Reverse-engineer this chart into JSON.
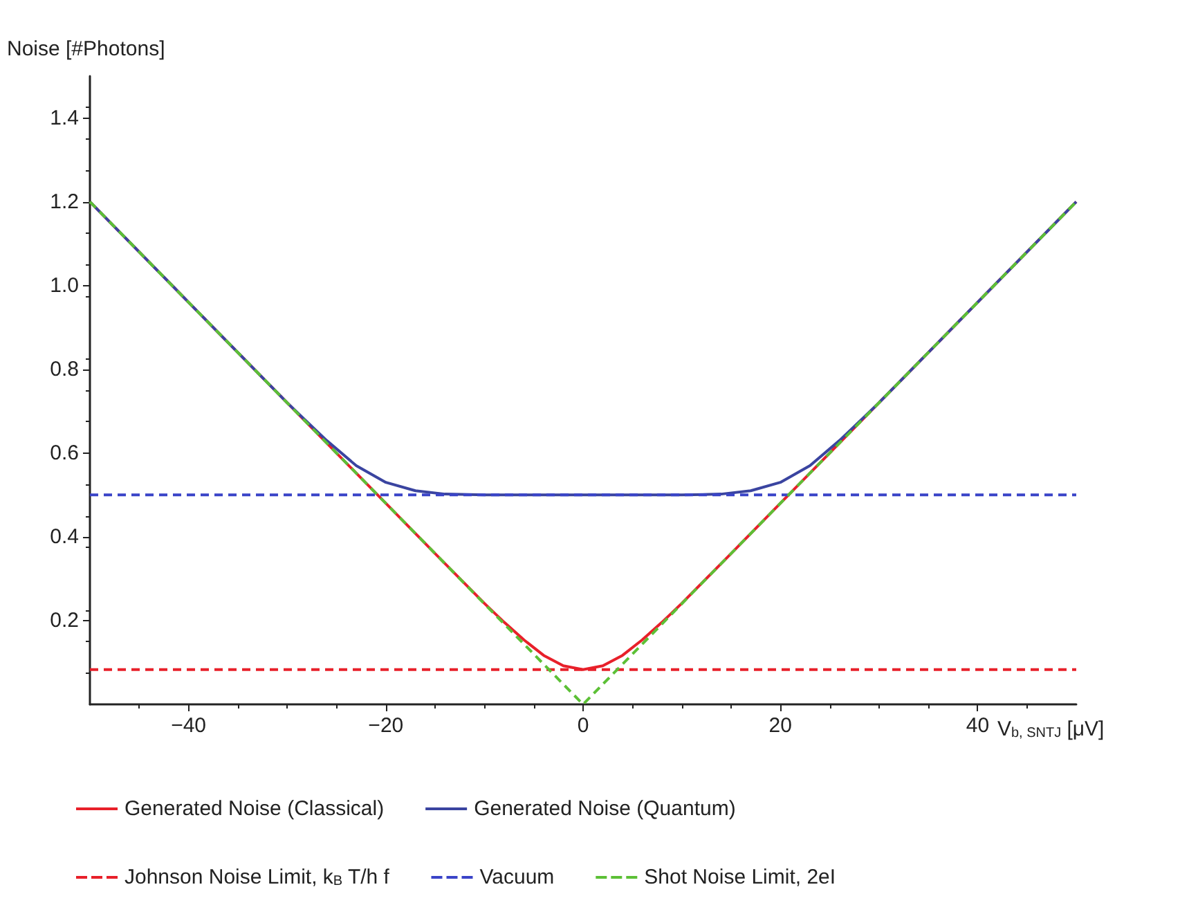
{
  "chart_data": {
    "type": "line",
    "xlabel": "V$_{b, SNTJ}$ [μV]",
    "ylabel": "Noise [#Photons]",
    "xlim": [
      -50,
      50
    ],
    "xticks": [
      -40,
      -20,
      0,
      20,
      40
    ],
    "ylim": [
      0,
      1.5
    ],
    "yticks": [
      0.2,
      0.4,
      0.6,
      0.8,
      {
        "value": 1,
        "label": "1.0"
      },
      1.2,
      1.4
    ],
    "grid": false,
    "legend": "bottom",
    "marker": "none",
    "series": [
      {
        "name": "Generated Noise (Classical)",
        "color": "#e8202a",
        "line_style": "solid",
        "x": [
          -50,
          -40,
          -30,
          -20,
          -15,
          -10,
          -8,
          -6,
          -4,
          -2,
          0,
          2,
          4,
          6,
          8,
          10,
          15,
          20,
          30,
          40,
          50
        ],
        "values": [
          1.2,
          0.96,
          0.72,
          0.48,
          0.36,
          0.241,
          0.196,
          0.154,
          0.117,
          0.092,
          0.083,
          0.092,
          0.117,
          0.154,
          0.196,
          0.241,
          0.36,
          0.48,
          0.72,
          0.96,
          1.2
        ]
      },
      {
        "name": "Generated Noise (Quantum)",
        "color": "#3a44a0",
        "line_style": "solid",
        "x": [
          -50,
          -40,
          -30,
          -26,
          -23,
          -20,
          -17,
          -14,
          -10,
          0,
          10,
          14,
          17,
          20,
          23,
          26,
          30,
          40,
          50
        ],
        "values": [
          1.2,
          0.96,
          0.72,
          0.63,
          0.57,
          0.53,
          0.51,
          0.502,
          0.5,
          0.5,
          0.5,
          0.502,
          0.51,
          0.53,
          0.57,
          0.63,
          0.72,
          0.96,
          1.2
        ]
      },
      {
        "name": "Johnson Noise Limit, k$_{B}$ T/h f",
        "color": "#e8202a",
        "line_style": "dashed",
        "x": [
          -50,
          50
        ],
        "values": [
          0.083,
          0.083
        ]
      },
      {
        "name": "Vacuum",
        "color": "#3a44c8",
        "line_style": "dashed",
        "x": [
          -50,
          50
        ],
        "values": [
          0.5,
          0.5
        ]
      },
      {
        "name": "Shot Noise Limit, 2eI",
        "color": "#5cc036",
        "line_style": "dashed",
        "x": [
          -50,
          0,
          50
        ],
        "values": [
          1.2,
          0,
          1.2
        ]
      }
    ]
  }
}
